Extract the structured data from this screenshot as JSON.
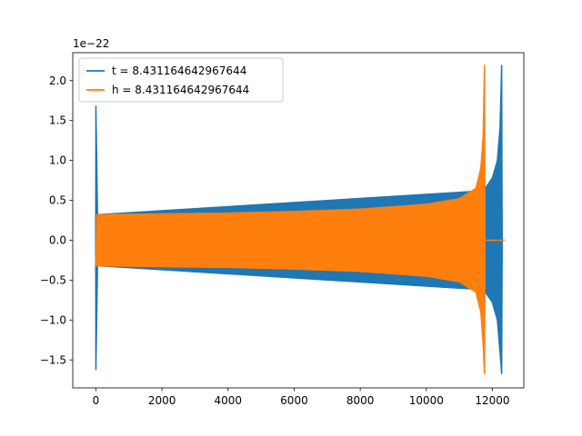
{
  "chart_data": {
    "type": "line",
    "title": "",
    "xlabel": "",
    "ylabel": "",
    "y_offset_text": "1e−22",
    "xlim": [
      -700,
      12950
    ],
    "ylim": [
      -1.85,
      2.35
    ],
    "x_ticks": [
      0,
      2000,
      4000,
      6000,
      8000,
      10000,
      12000
    ],
    "y_ticks": [
      -1.5,
      -1.0,
      -0.5,
      0.0,
      0.5,
      1.0,
      1.5,
      2.0
    ],
    "x_tick_labels": [
      "0",
      "2000",
      "4000",
      "6000",
      "8000",
      "10000",
      "12000"
    ],
    "y_tick_labels": [
      "−1.5",
      "−1.0",
      "−0.5",
      "0.0",
      "0.5",
      "1.0",
      "1.5",
      "2.0"
    ],
    "grid": false,
    "legend_position": "upper-left",
    "colors": {
      "t": "#1f77b4",
      "h": "#ff7f0e"
    },
    "series": [
      {
        "name": "t = 8.431164642967644",
        "color": "#1f77b4",
        "envelope": [
          {
            "x": -5,
            "upper": -0.15,
            "lower": -0.15
          },
          {
            "x": 0,
            "upper": 1.68,
            "lower": -1.62
          },
          {
            "x": 50,
            "upper": 0.32,
            "lower": -0.32
          },
          {
            "x": 11750,
            "upper": 0.62,
            "lower": -0.62
          },
          {
            "x": 11800,
            "upper": 0.66,
            "lower": -0.66
          },
          {
            "x": 12000,
            "upper": 0.78,
            "lower": -0.78
          },
          {
            "x": 12150,
            "upper": 1.0,
            "lower": -1.0
          },
          {
            "x": 12230,
            "upper": 1.4,
            "lower": -1.4
          },
          {
            "x": 12280,
            "upper": 2.19,
            "lower": -1.67
          },
          {
            "x": 12295,
            "upper": 0.05,
            "lower": -0.05
          }
        ],
        "tail": {
          "x_start": 12295,
          "x_end": 12370,
          "y": 0.0
        }
      },
      {
        "name": "h = 8.431164642967644",
        "color": "#ff7f0e",
        "envelope": [
          {
            "x": 0,
            "upper": -0.3,
            "lower": -0.3
          },
          {
            "x": 30,
            "upper": 0.32,
            "lower": -0.32
          },
          {
            "x": 2000,
            "upper": 0.33,
            "lower": -0.33
          },
          {
            "x": 4000,
            "upper": 0.34,
            "lower": -0.34
          },
          {
            "x": 6000,
            "upper": 0.36,
            "lower": -0.36
          },
          {
            "x": 8000,
            "upper": 0.39,
            "lower": -0.39
          },
          {
            "x": 10000,
            "upper": 0.45,
            "lower": -0.45
          },
          {
            "x": 11000,
            "upper": 0.52,
            "lower": -0.52
          },
          {
            "x": 11500,
            "upper": 0.65,
            "lower": -0.65
          },
          {
            "x": 11650,
            "upper": 0.9,
            "lower": -0.9
          },
          {
            "x": 11720,
            "upper": 1.3,
            "lower": -1.3
          },
          {
            "x": 11760,
            "upper": 2.19,
            "lower": -1.67
          },
          {
            "x": 11775,
            "upper": 0.03,
            "lower": -0.03
          }
        ],
        "tail": {
          "x_start": 11775,
          "x_end": 12370,
          "y": 0.0
        }
      }
    ]
  }
}
